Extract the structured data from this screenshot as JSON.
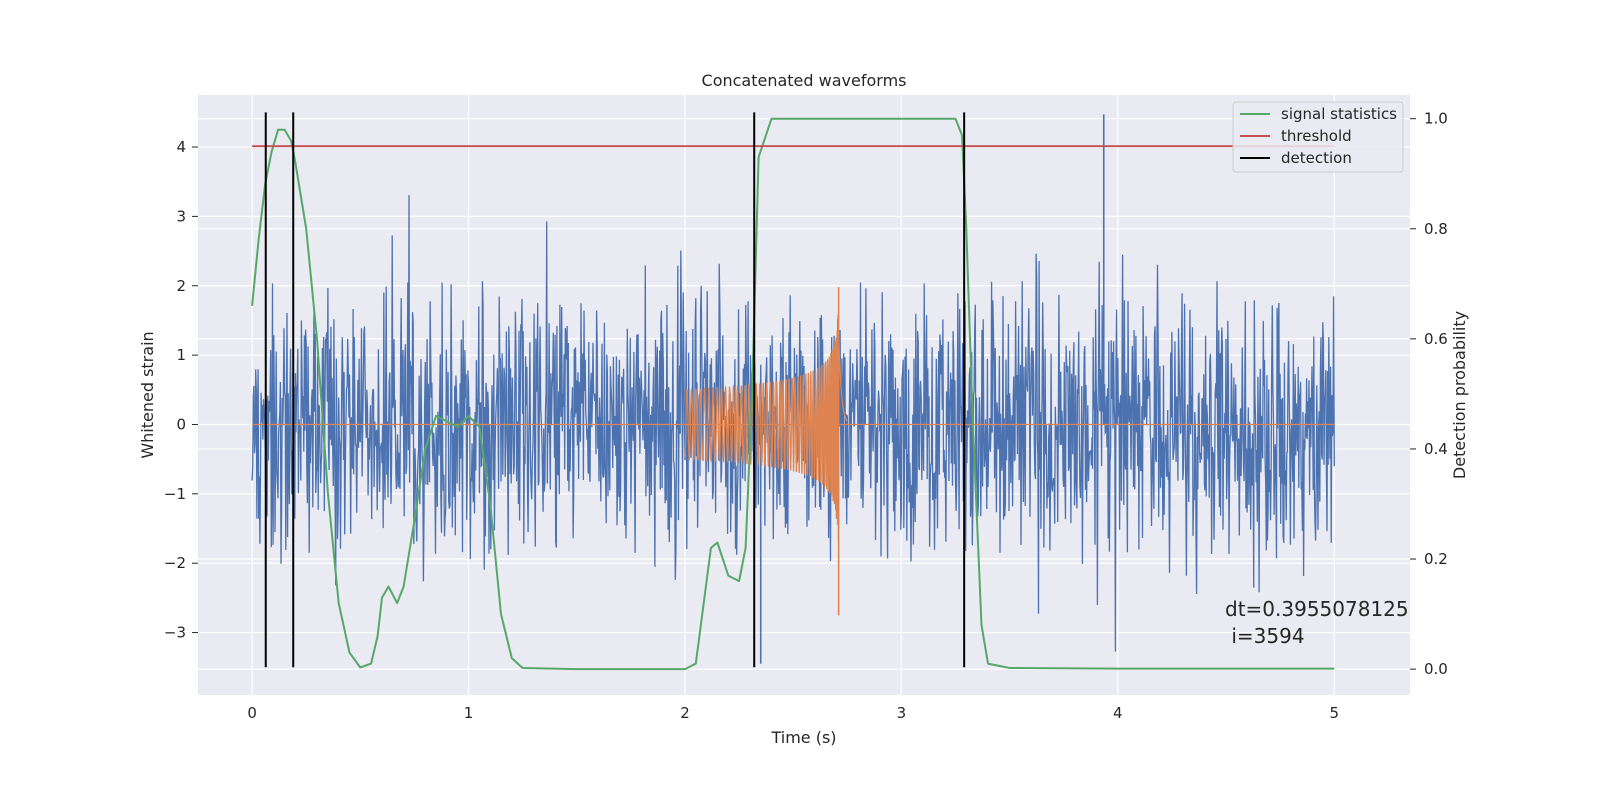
{
  "chart_data": {
    "type": "line",
    "title": "Concatenated waveforms",
    "xlabel": "Time (s)",
    "ylabel": "Whitened strain",
    "y2label": "Detection probability",
    "xlim": [
      -0.25,
      5.35
    ],
    "ylim": [
      -3.9,
      4.75
    ],
    "y2lim": [
      -0.047,
      1.043
    ],
    "xticks": [
      0,
      1,
      2,
      3,
      4,
      5
    ],
    "yticks": [
      -3,
      -2,
      -1,
      0,
      1,
      2,
      3,
      4
    ],
    "y2ticks": [
      0.0,
      0.2,
      0.4,
      0.6,
      0.8,
      1.0
    ],
    "grid": true,
    "legend_position": "top-right",
    "colors": {
      "strain": "#4c72b0",
      "waveform": "#dd8452",
      "signal_statistics": "#55a868",
      "threshold": "#c44e52",
      "detection": "#000000",
      "background": "#eaeaf2"
    },
    "series": [
      {
        "name": "signal statistics",
        "axis": "right",
        "x": [
          0.0,
          0.03,
          0.06,
          0.09,
          0.12,
          0.15,
          0.18,
          0.2,
          0.25,
          0.3,
          0.35,
          0.4,
          0.45,
          0.5,
          0.55,
          0.58,
          0.6,
          0.63,
          0.67,
          0.7,
          0.75,
          0.8,
          0.85,
          0.9,
          0.95,
          1.0,
          1.05,
          1.1,
          1.15,
          1.2,
          1.25,
          1.5,
          2.0,
          2.05,
          2.1,
          2.12,
          2.15,
          2.2,
          2.25,
          2.28,
          2.31,
          2.34,
          2.4,
          3.0,
          3.25,
          3.28,
          3.3,
          3.33,
          3.37,
          3.4,
          3.5,
          4.0,
          5.0
        ],
        "values": [
          0.66,
          0.78,
          0.88,
          0.94,
          0.98,
          0.98,
          0.96,
          0.92,
          0.8,
          0.6,
          0.32,
          0.12,
          0.03,
          0.003,
          0.01,
          0.06,
          0.13,
          0.15,
          0.12,
          0.15,
          0.27,
          0.4,
          0.46,
          0.45,
          0.44,
          0.46,
          0.44,
          0.3,
          0.1,
          0.02,
          0.002,
          0.0,
          0.0,
          0.01,
          0.16,
          0.22,
          0.23,
          0.17,
          0.16,
          0.22,
          0.5,
          0.93,
          1.0,
          1.0,
          1.0,
          0.97,
          0.8,
          0.45,
          0.08,
          0.01,
          0.002,
          0.001,
          0.001
        ]
      },
      {
        "name": "threshold",
        "axis": "right",
        "x": [
          0.0,
          5.0
        ],
        "values": [
          0.95,
          0.95
        ]
      },
      {
        "name": "detection",
        "axis": "left",
        "x_positions": [
          0.063,
          0.19,
          2.32,
          3.29
        ],
        "y_range": [
          -3.5,
          4.5
        ]
      },
      {
        "axis": "left",
        "x_range": [
          0.0,
          5.0
        ],
        "typical_amplitude": 1.3,
        "max_value": 4.47,
        "min_value": -3.45
      },
      {
        "axis": "left",
        "x_range": [
          2.0,
          2.75
        ],
        "start_amplitude": 0.5,
        "peak_time": 2.71,
        "peak_value": 1.98,
        "min_value": -2.75
      }
    ],
    "annotation": [
      "dt=0.3955078125",
      " i=3594"
    ]
  }
}
